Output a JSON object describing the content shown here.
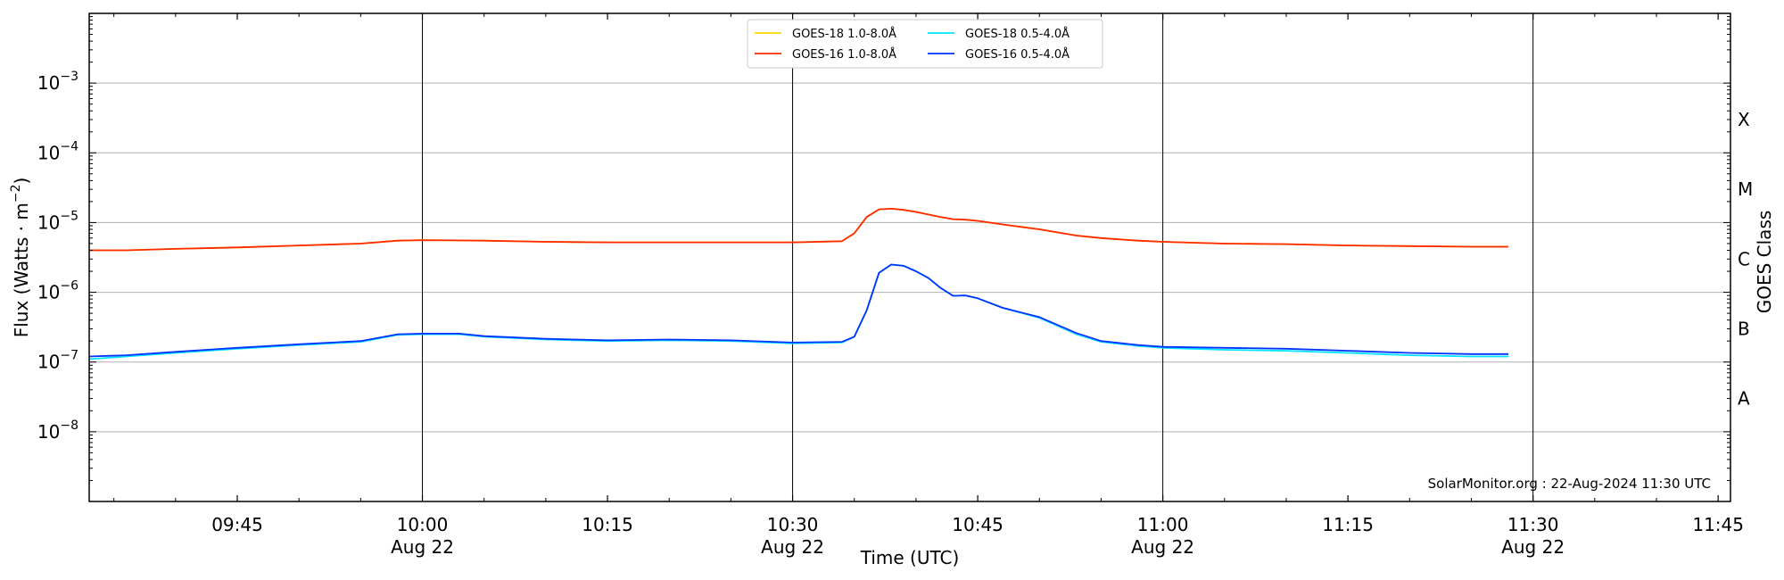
{
  "chart_data": {
    "type": "line",
    "title": "",
    "xlabel": "Time (UTC)",
    "ylabel_main": "Flux (Watts · m",
    "ylabel_sup": "−2",
    "ylabel_close": ")",
    "y2label": "GOES Class",
    "yscale": "log",
    "ylim": [
      1e-09,
      0.01
    ],
    "xlim": [
      "09:33",
      "11:46"
    ],
    "grid": "horizontal at decades",
    "legend_position": "top-center",
    "x_ticks": [
      {
        "time": "09:45",
        "label": "09:45",
        "sublabel": ""
      },
      {
        "time": "10:00",
        "label": "10:00",
        "sublabel": "Aug 22"
      },
      {
        "time": "10:15",
        "label": "10:15",
        "sublabel": ""
      },
      {
        "time": "10:30",
        "label": "10:30",
        "sublabel": "Aug 22"
      },
      {
        "time": "10:45",
        "label": "10:45",
        "sublabel": ""
      },
      {
        "time": "11:00",
        "label": "11:00",
        "sublabel": "Aug 22"
      },
      {
        "time": "11:15",
        "label": "11:15",
        "sublabel": ""
      },
      {
        "time": "11:30",
        "label": "11:30",
        "sublabel": "Aug 22"
      },
      {
        "time": "11:45",
        "label": "11:45",
        "sublabel": ""
      }
    ],
    "vertical_lines": [
      "10:00",
      "10:30",
      "11:00",
      "11:30"
    ],
    "y_ticks": [
      {
        "value": 1e-08,
        "base": "10",
        "exp": "−8"
      },
      {
        "value": 1e-07,
        "base": "10",
        "exp": "−7"
      },
      {
        "value": 1e-06,
        "base": "10",
        "exp": "−6"
      },
      {
        "value": 1e-05,
        "base": "10",
        "exp": "−5"
      },
      {
        "value": 0.0001,
        "base": "10",
        "exp": "−4"
      },
      {
        "value": 0.001,
        "base": "10",
        "exp": "−3"
      }
    ],
    "goes_classes": [
      {
        "label": "A",
        "value": 3e-08
      },
      {
        "label": "B",
        "value": 3e-07
      },
      {
        "label": "C",
        "value": 3e-06
      },
      {
        "label": "M",
        "value": 3e-05
      },
      {
        "label": "X",
        "value": 0.0003
      }
    ],
    "series": [
      {
        "name": "GOES-18 1.0-8.0Å",
        "color": "#ffd700",
        "x": [
          "09:33",
          "09:36",
          "09:40",
          "09:45",
          "09:50",
          "09:55",
          "09:58",
          "10:00",
          "10:05",
          "10:10",
          "10:15",
          "10:20",
          "10:25",
          "10:30",
          "10:34",
          "10:35",
          "10:36",
          "10:37",
          "10:38",
          "10:39",
          "10:40",
          "10:42",
          "10:43",
          "10:44",
          "10:45",
          "10:47",
          "10:50",
          "10:53",
          "10:55",
          "10:58",
          "11:00",
          "11:05",
          "11:10",
          "11:15",
          "11:20",
          "11:25",
          "11:28"
        ],
        "values": [
          4e-06,
          4e-06,
          4.2e-06,
          4.4e-06,
          4.7e-06,
          5e-06,
          5.5e-06,
          5.6e-06,
          5.5e-06,
          5.3e-06,
          5.2e-06,
          5.2e-06,
          5.2e-06,
          5.2e-06,
          5.4e-06,
          7e-06,
          1.2e-05,
          1.55e-05,
          1.58e-05,
          1.52e-05,
          1.42e-05,
          1.2e-05,
          1.12e-05,
          1.1e-05,
          1.06e-05,
          9.4e-06,
          8e-06,
          6.5e-06,
          6e-06,
          5.5e-06,
          5.3e-06,
          5e-06,
          4.9e-06,
          4.7e-06,
          4.6e-06,
          4.5e-06,
          4.5e-06
        ]
      },
      {
        "name": "GOES-18 0.5-4.0Å",
        "color": "#00e5ff",
        "x": [
          "09:33",
          "09:36",
          "09:40",
          "09:45",
          "09:50",
          "09:55",
          "09:58",
          "10:00",
          "10:03",
          "10:05",
          "10:10",
          "10:15",
          "10:20",
          "10:25",
          "10:30",
          "10:34",
          "10:35",
          "10:36",
          "10:37",
          "10:38",
          "10:39",
          "10:40",
          "10:41",
          "10:42",
          "10:43",
          "10:44",
          "10:45",
          "10:47",
          "10:50",
          "10:53",
          "10:55",
          "10:58",
          "11:00",
          "11:05",
          "11:10",
          "11:15",
          "11:20",
          "11:25",
          "11:28"
        ],
        "values": [
          1.1e-07,
          1.2e-07,
          1.35e-07,
          1.55e-07,
          1.75e-07,
          1.95e-07,
          2.45e-07,
          2.5e-07,
          2.5e-07,
          2.3e-07,
          2.1e-07,
          2e-07,
          2.05e-07,
          2e-07,
          1.85e-07,
          1.9e-07,
          2.3e-07,
          5.5e-07,
          1.9e-06,
          2.5e-06,
          2.4e-06,
          2e-06,
          1.6e-06,
          1.15e-06,
          8.9e-07,
          9e-07,
          8.2e-07,
          6e-07,
          4.3e-07,
          2.5e-07,
          1.95e-07,
          1.7e-07,
          1.6e-07,
          1.5e-07,
          1.45e-07,
          1.35e-07,
          1.25e-07,
          1.2e-07,
          1.2e-07
        ]
      },
      {
        "name": "GOES-16 1.0-8.0Å",
        "color": "#ff2a00",
        "x": [
          "09:33",
          "09:36",
          "09:40",
          "09:45",
          "09:50",
          "09:55",
          "09:58",
          "10:00",
          "10:05",
          "10:10",
          "10:15",
          "10:20",
          "10:25",
          "10:30",
          "10:34",
          "10:35",
          "10:36",
          "10:37",
          "10:38",
          "10:39",
          "10:40",
          "10:42",
          "10:43",
          "10:44",
          "10:45",
          "10:47",
          "10:50",
          "10:53",
          "10:55",
          "10:58",
          "11:00",
          "11:05",
          "11:10",
          "11:15",
          "11:20",
          "11:25",
          "11:28"
        ],
        "values": [
          4e-06,
          4e-06,
          4.2e-06,
          4.4e-06,
          4.7e-06,
          5e-06,
          5.5e-06,
          5.6e-06,
          5.5e-06,
          5.3e-06,
          5.2e-06,
          5.2e-06,
          5.2e-06,
          5.2e-06,
          5.4e-06,
          7e-06,
          1.2e-05,
          1.55e-05,
          1.58e-05,
          1.52e-05,
          1.42e-05,
          1.2e-05,
          1.12e-05,
          1.1e-05,
          1.06e-05,
          9.4e-06,
          8e-06,
          6.5e-06,
          6e-06,
          5.5e-06,
          5.3e-06,
          5e-06,
          4.9e-06,
          4.7e-06,
          4.6e-06,
          4.5e-06,
          4.5e-06
        ]
      },
      {
        "name": "GOES-16 0.5-4.0Å",
        "color": "#0033ff",
        "x": [
          "09:33",
          "09:36",
          "09:40",
          "09:45",
          "09:50",
          "09:55",
          "09:58",
          "10:00",
          "10:03",
          "10:05",
          "10:10",
          "10:15",
          "10:20",
          "10:25",
          "10:30",
          "10:34",
          "10:35",
          "10:36",
          "10:37",
          "10:38",
          "10:39",
          "10:40",
          "10:41",
          "10:42",
          "10:43",
          "10:44",
          "10:45",
          "10:47",
          "10:50",
          "10:53",
          "10:55",
          "10:58",
          "11:00",
          "11:05",
          "11:10",
          "11:15",
          "11:20",
          "11:25",
          "11:28"
        ],
        "values": [
          1.2e-07,
          1.25e-07,
          1.4e-07,
          1.6e-07,
          1.8e-07,
          2e-07,
          2.5e-07,
          2.55e-07,
          2.55e-07,
          2.35e-07,
          2.15e-07,
          2.05e-07,
          2.1e-07,
          2.05e-07,
          1.9e-07,
          1.95e-07,
          2.3e-07,
          5.5e-07,
          1.9e-06,
          2.5e-06,
          2.4e-06,
          2e-06,
          1.6e-06,
          1.15e-06,
          8.9e-07,
          9e-07,
          8.2e-07,
          6e-07,
          4.4e-07,
          2.6e-07,
          2e-07,
          1.75e-07,
          1.65e-07,
          1.6e-07,
          1.55e-07,
          1.45e-07,
          1.35e-07,
          1.3e-07,
          1.3e-07
        ]
      }
    ],
    "legend_columns": [
      [
        "GOES-18 1.0-8.0Å",
        "GOES-16 1.0-8.0Å"
      ],
      [
        "GOES-18 0.5-4.0Å",
        "GOES-16 0.5-4.0Å"
      ]
    ],
    "annotation": "SolarMonitor.org : 22-Aug-2024 11:30 UTC"
  }
}
